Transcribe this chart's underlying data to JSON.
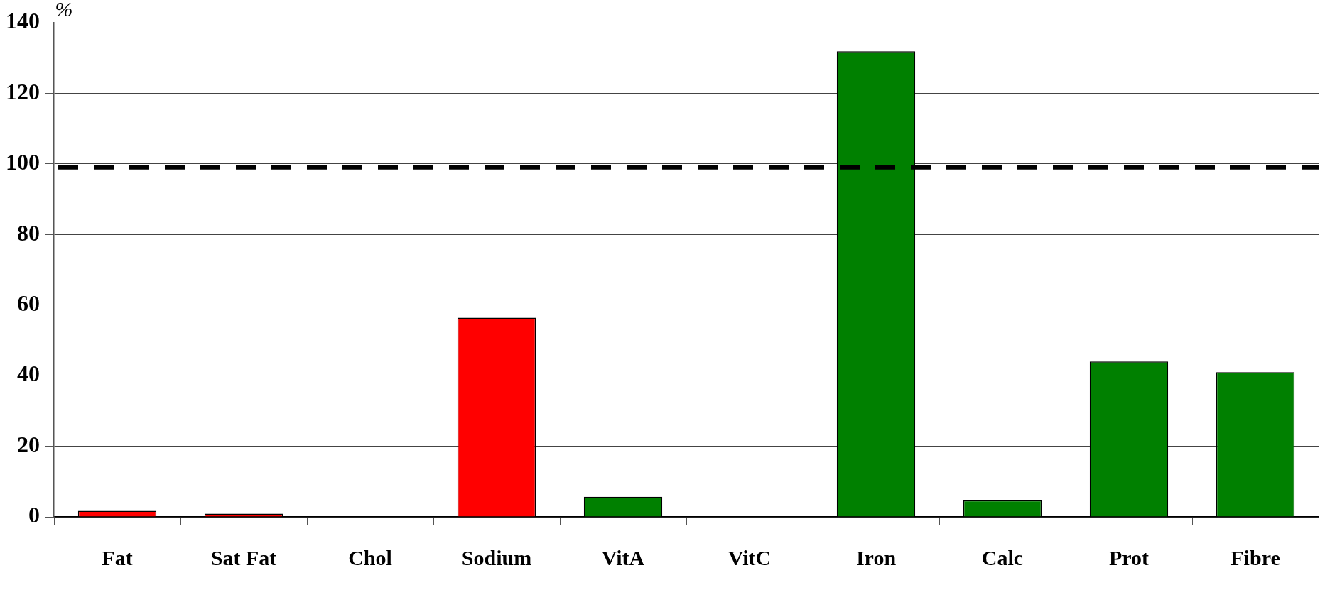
{
  "chart_data": {
    "type": "bar",
    "ylabel": "%",
    "categories": [
      "Fat",
      "Sat Fat",
      "Chol",
      "Sodium",
      "VitA",
      "VitC",
      "Iron",
      "Calc",
      "Prot",
      "Fibre"
    ],
    "values": [
      1.7,
      0.9,
      0,
      56.4,
      5.7,
      0,
      131.9,
      4.7,
      44,
      41
    ],
    "colors": [
      "#ff0000",
      "#ff0000",
      "#ff0000",
      "#ff0000",
      "#008000",
      "#008000",
      "#008000",
      "#008000",
      "#008000",
      "#008000"
    ],
    "ylim": [
      0,
      140
    ],
    "yticks": [
      0,
      20,
      40,
      60,
      80,
      100,
      120,
      140
    ],
    "grid": "y",
    "legend": false,
    "ref_lines": [
      {
        "axis": "y",
        "value": 99,
        "color": "#000000",
        "line_style": "dashed"
      }
    ]
  }
}
